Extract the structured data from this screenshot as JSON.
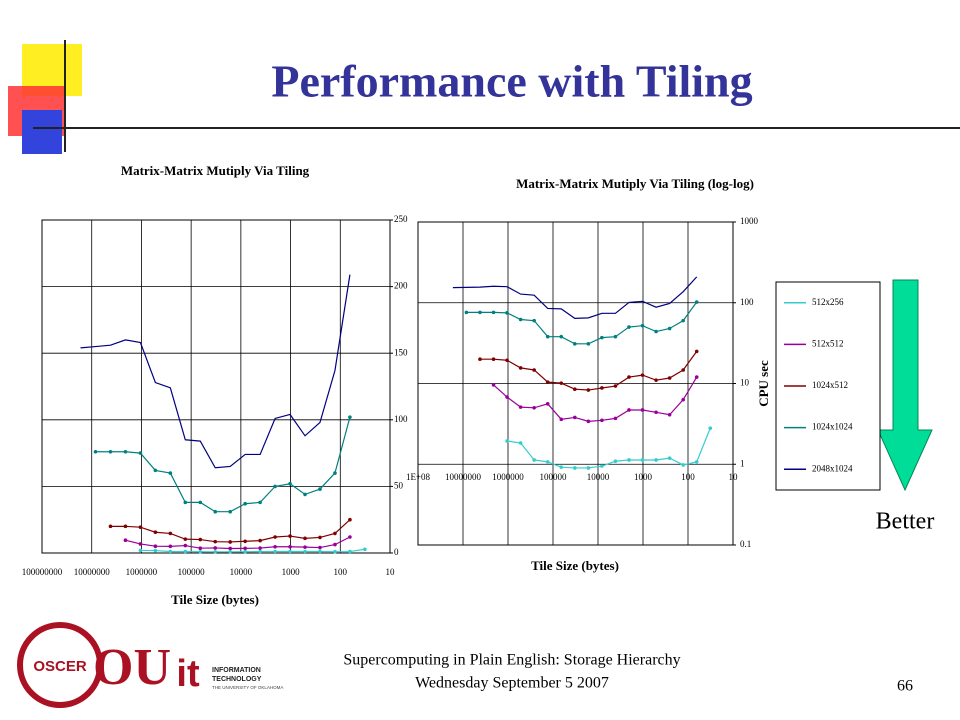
{
  "slide": {
    "title": "Performance with Tiling",
    "footer_line1": "Supercomputing in Plain English: Storage Hierarchy",
    "footer_line2": "Wednesday September 5 2007",
    "page_number": "66",
    "arrow_label": "Better",
    "logo_oscer": "OSCER",
    "logo_it_line1": "INFORMATION",
    "logo_it_line2": "TECHNOLOGY",
    "logo_it_line3": "THE UNIVERSITY OF OKLAHOMA"
  },
  "chart_data": [
    {
      "type": "line",
      "title": "Matrix-Matrix Mutiply Via Tiling",
      "x_label": "Tile Size (bytes)",
      "xscale": "log",
      "yscale": "linear",
      "grid": true,
      "xlim": [
        100000000,
        10
      ],
      "xticks": [
        100000000,
        10000000,
        1000000,
        100000,
        10000,
        1000,
        100,
        10
      ],
      "ylim": [
        0,
        250
      ],
      "yticks": [
        0,
        50,
        100,
        150,
        200,
        250
      ],
      "series": [
        {
          "color": "#33cccc",
          "x": [
            1048576,
            524288,
            262144,
            131072,
            65536,
            32768,
            16384,
            8192,
            4096,
            2048,
            1024,
            512,
            256,
            128,
            64,
            32
          ],
          "values": [
            1.94,
            1.83,
            1.13,
            1.07,
            0.92,
            0.9,
            0.9,
            0.95,
            1.09,
            1.13,
            1.13,
            1.13,
            1.19,
            0.98,
            1.07,
            2.8
          ]
        },
        {
          "color": "#990099",
          "x": [
            2097152,
            1048576,
            524288,
            262144,
            131072,
            65536,
            32768,
            16384,
            8192,
            4096,
            2048,
            1024,
            512,
            256,
            128,
            64
          ],
          "values": [
            9.6,
            6.8,
            5.1,
            5.0,
            5.6,
            3.6,
            3.8,
            3.4,
            3.5,
            3.7,
            4.7,
            4.7,
            4.4,
            4.1,
            6.3,
            12
          ]
        },
        {
          "color": "#800000",
          "x": [
            4194304,
            2097152,
            1048576,
            524288,
            262144,
            131072,
            65536,
            32768,
            16384,
            8192,
            4096,
            2048,
            1024,
            512,
            256,
            128,
            64
          ],
          "values": [
            20,
            20,
            19.4,
            15.6,
            14.7,
            10.4,
            10.1,
            8.5,
            8.3,
            8.8,
            9.3,
            12,
            12.7,
            11,
            11.7,
            14.7,
            25
          ]
        },
        {
          "color": "#008080",
          "x": [
            8388608,
            4194304,
            2097152,
            1048576,
            524288,
            262144,
            131072,
            65536,
            32768,
            16384,
            8192,
            4096,
            2048,
            1024,
            512,
            256,
            128,
            64
          ],
          "values": [
            76,
            76,
            76,
            75,
            62,
            60,
            38,
            38,
            31,
            31,
            37,
            38,
            50,
            52,
            44,
            48,
            60,
            102
          ]
        },
        {
          "color": "#000080",
          "x": [
            16777216,
            8388608,
            4194304,
            2097152,
            1048576,
            524288,
            262144,
            131072,
            65536,
            32768,
            16384,
            8192,
            4096,
            2048,
            1024,
            512,
            256,
            128,
            64
          ],
          "values": [
            154,
            155,
            156,
            160,
            158,
            128,
            124,
            85,
            84,
            64,
            65,
            74,
            74,
            101,
            104,
            88,
            98,
            137,
            209
          ]
        }
      ]
    },
    {
      "type": "line",
      "title": "Matrix-Matrix Mutiply Via Tiling (log-log)",
      "x_label": "Tile Size (bytes)",
      "y_label": "CPU sec",
      "xscale": "log",
      "yscale": "log",
      "grid": true,
      "legend": "right",
      "xlim": [
        100000000,
        10
      ],
      "xticks": [
        {
          "value": 100000000,
          "label": "1E+08"
        },
        10000000,
        1000000,
        100000,
        10000,
        1000,
        100,
        10
      ],
      "ylim": [
        0.1,
        1000
      ],
      "yticks": [
        0.1,
        1,
        10,
        100,
        1000
      ],
      "series": [
        {
          "name": "512x256",
          "color": "#33cccc",
          "x": [
            1048576,
            524288,
            262144,
            131072,
            65536,
            32768,
            16384,
            8192,
            4096,
            2048,
            1024,
            512,
            256,
            128,
            64,
            32
          ],
          "values": [
            1.94,
            1.83,
            1.13,
            1.07,
            0.92,
            0.9,
            0.9,
            0.95,
            1.09,
            1.13,
            1.13,
            1.13,
            1.19,
            0.98,
            1.07,
            2.8
          ]
        },
        {
          "name": "512x512",
          "color": "#990099",
          "x": [
            2097152,
            1048576,
            524288,
            262144,
            131072,
            65536,
            32768,
            16384,
            8192,
            4096,
            2048,
            1024,
            512,
            256,
            128,
            64
          ],
          "values": [
            9.6,
            6.8,
            5.1,
            5.0,
            5.6,
            3.6,
            3.8,
            3.4,
            3.5,
            3.7,
            4.7,
            4.7,
            4.4,
            4.1,
            6.3,
            12
          ]
        },
        {
          "name": "1024x512",
          "color": "#800000",
          "x": [
            4194304,
            2097152,
            1048576,
            524288,
            262144,
            131072,
            65536,
            32768,
            16384,
            8192,
            4096,
            2048,
            1024,
            512,
            256,
            128,
            64
          ],
          "values": [
            20,
            20,
            19.4,
            15.6,
            14.7,
            10.4,
            10.1,
            8.5,
            8.3,
            8.8,
            9.3,
            12,
            12.7,
            11,
            11.7,
            14.7,
            25
          ]
        },
        {
          "name": "1024x1024",
          "color": "#008080",
          "x": [
            8388608,
            4194304,
            2097152,
            1048576,
            524288,
            262144,
            131072,
            65536,
            32768,
            16384,
            8192,
            4096,
            2048,
            1024,
            512,
            256,
            128,
            64
          ],
          "values": [
            76,
            76,
            76,
            75,
            62,
            60,
            38,
            38,
            31,
            31,
            37,
            38,
            50,
            52,
            44,
            48,
            60,
            102
          ]
        },
        {
          "name": "2048x1024",
          "color": "#000080",
          "x": [
            16777216,
            8388608,
            4194304,
            2097152,
            1048576,
            524288,
            262144,
            131072,
            65536,
            32768,
            16384,
            8192,
            4096,
            2048,
            1024,
            512,
            256,
            128,
            64
          ],
          "values": [
            154,
            155,
            156,
            160,
            158,
            128,
            124,
            85,
            84,
            64,
            65,
            74,
            74,
            101,
            104,
            88,
            98,
            137,
            209
          ]
        }
      ]
    }
  ]
}
